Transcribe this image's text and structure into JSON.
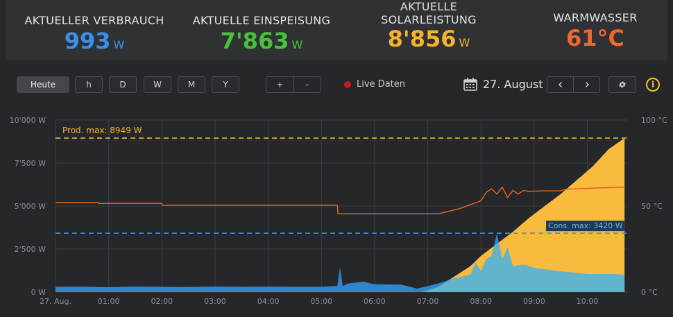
{
  "kpis": [
    {
      "label": "AKTUELLER VERBRAUCH",
      "value": "993",
      "unit": "W",
      "color": "#3a8fe8"
    },
    {
      "label": "AKTUELLE EINSPEISUNG",
      "value": "7'863",
      "unit": "W",
      "color": "#45c33c"
    },
    {
      "label_line1": "AKTUELLE",
      "label_line2": "SOLARLEISTUNG",
      "value": "8'856",
      "unit": "W",
      "color": "#f3b42b"
    },
    {
      "label": "WARMWASSER",
      "value": "61°C",
      "color": "#f0682a"
    }
  ],
  "toolbar": {
    "periods": [
      "Heute",
      "h",
      "D",
      "W",
      "M",
      "Y"
    ],
    "active_period": "Heute",
    "zoom_in": "+",
    "zoom_out": "-",
    "live_label": "Live Daten",
    "date": "27. August",
    "prev_icon": "chevron-left-icon",
    "next_icon": "chevron-right-icon",
    "settings_icon": "gear-icon",
    "info_icon": "info-icon",
    "calendar_icon": "calendar-icon",
    "info_glyph": "i"
  },
  "chart_data": {
    "type": "area",
    "y_left_ticks": [
      "10'000 W",
      "7'500 W",
      "5'000 W",
      "2'500 W",
      "0 W"
    ],
    "y_left_range": [
      0,
      10000
    ],
    "y_right_ticks": [
      "100 °C",
      "50 °C",
      "0 °C"
    ],
    "y_right_range": [
      0,
      100
    ],
    "x_ticks": [
      "27. Aug.",
      "01:00",
      "02:00",
      "03:00",
      "04:00",
      "05:00",
      "06:00",
      "07:00",
      "08:00",
      "09:00",
      "10:00"
    ],
    "x_range_hours": [
      0,
      10.75
    ],
    "grid": true,
    "annotations": [
      {
        "label": "Prod. max: 8949 W",
        "value": 8949,
        "axis": "left",
        "color": "#f3b42b"
      },
      {
        "label": "Cons. max: 3420 W",
        "value": 3420,
        "axis": "left",
        "color": "#3a8fe8"
      }
    ],
    "series": [
      {
        "key": "production",
        "color": "#f9bb3d",
        "axis": "left",
        "x": [
          0,
          6.9,
          7.2,
          7.5,
          7.8,
          8.0,
          8.3,
          8.6,
          8.9,
          9.2,
          9.5,
          9.8,
          10.1,
          10.4,
          10.7
        ],
        "values": [
          0,
          0,
          300,
          900,
          1500,
          2100,
          2800,
          3500,
          4300,
          5000,
          5700,
          6500,
          7300,
          8300,
          8949
        ]
      },
      {
        "key": "consumption",
        "color": "#2e8bd6",
        "axis": "left",
        "x": [
          0,
          0.5,
          1.0,
          1.5,
          2.0,
          2.5,
          3.0,
          3.5,
          4.0,
          4.5,
          5.0,
          5.3,
          5.35,
          5.4,
          5.5,
          5.8,
          6.0,
          6.5,
          6.8,
          7.0,
          7.2,
          7.5,
          7.8,
          7.9,
          8.0,
          8.1,
          8.2,
          8.3,
          8.4,
          8.5,
          8.6,
          8.8,
          9.0,
          9.5,
          10.0,
          10.5,
          10.7
        ],
        "values": [
          300,
          310,
          280,
          320,
          300,
          290,
          320,
          300,
          310,
          300,
          300,
          350,
          1450,
          350,
          500,
          600,
          450,
          430,
          200,
          350,
          500,
          800,
          1000,
          1700,
          1200,
          1900,
          2100,
          3400,
          1900,
          2600,
          1500,
          1600,
          1400,
          1200,
          1050,
          1050,
          990
        ]
      },
      {
        "key": "water_temperature",
        "color": "#e0631f",
        "axis": "right",
        "x": [
          0,
          0.8,
          0.81,
          2.0,
          2.01,
          5.3,
          5.31,
          7.2,
          7.6,
          8.0,
          8.1,
          8.2,
          8.3,
          8.4,
          8.5,
          8.6,
          8.7,
          8.8,
          8.9,
          9.2,
          9.5,
          9.6,
          10.0,
          10.7
        ],
        "values": [
          52,
          52,
          51.5,
          51.5,
          50.5,
          50.5,
          45.5,
          45.5,
          48.5,
          53,
          58,
          60,
          57,
          61,
          55,
          59,
          57,
          59,
          58.5,
          58.8,
          58.8,
          59.8,
          60.3,
          61
        ]
      }
    ]
  }
}
